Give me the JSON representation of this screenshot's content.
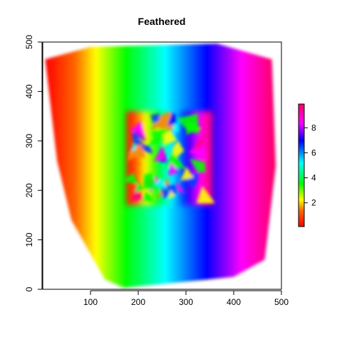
{
  "chart_data": {
    "type": "heatmap",
    "title": "Feathered",
    "xlabel": "",
    "ylabel": "",
    "xlim": [
      0,
      500
    ],
    "ylim": [
      0,
      500
    ],
    "x_ticks": [
      100,
      200,
      300,
      400,
      500
    ],
    "y_ticks": [
      0,
      100,
      200,
      300,
      400,
      500
    ],
    "color_scale": {
      "palette": "rainbow",
      "range": [
        0.1,
        9.9
      ],
      "ticks": [
        2,
        4,
        6,
        8
      ]
    },
    "surface": {
      "description_of_field": "value rises left-to-right across the hull; turbulent inner square",
      "hull": [
        [
          5,
          465
        ],
        [
          100,
          490
        ],
        [
          365,
          497
        ],
        [
          480,
          465
        ],
        [
          488,
          250
        ],
        [
          465,
          60
        ],
        [
          400,
          25
        ],
        [
          170,
          3
        ],
        [
          130,
          20
        ],
        [
          60,
          140
        ],
        [
          30,
          260
        ]
      ],
      "inner_region": [
        [
          175,
          170
        ],
        [
          355,
          360
        ]
      ],
      "x_value_pairs": [
        [
          5,
          0.1
        ],
        [
          500,
          9.9
        ]
      ]
    },
    "grid": false,
    "legend_position": "right"
  },
  "colors": {
    "rainbow_stops": [
      "#ff0000",
      "#ffff00",
      "#00ff00",
      "#00ffff",
      "#0000ff",
      "#ff00ff",
      "#ff0080"
    ]
  }
}
